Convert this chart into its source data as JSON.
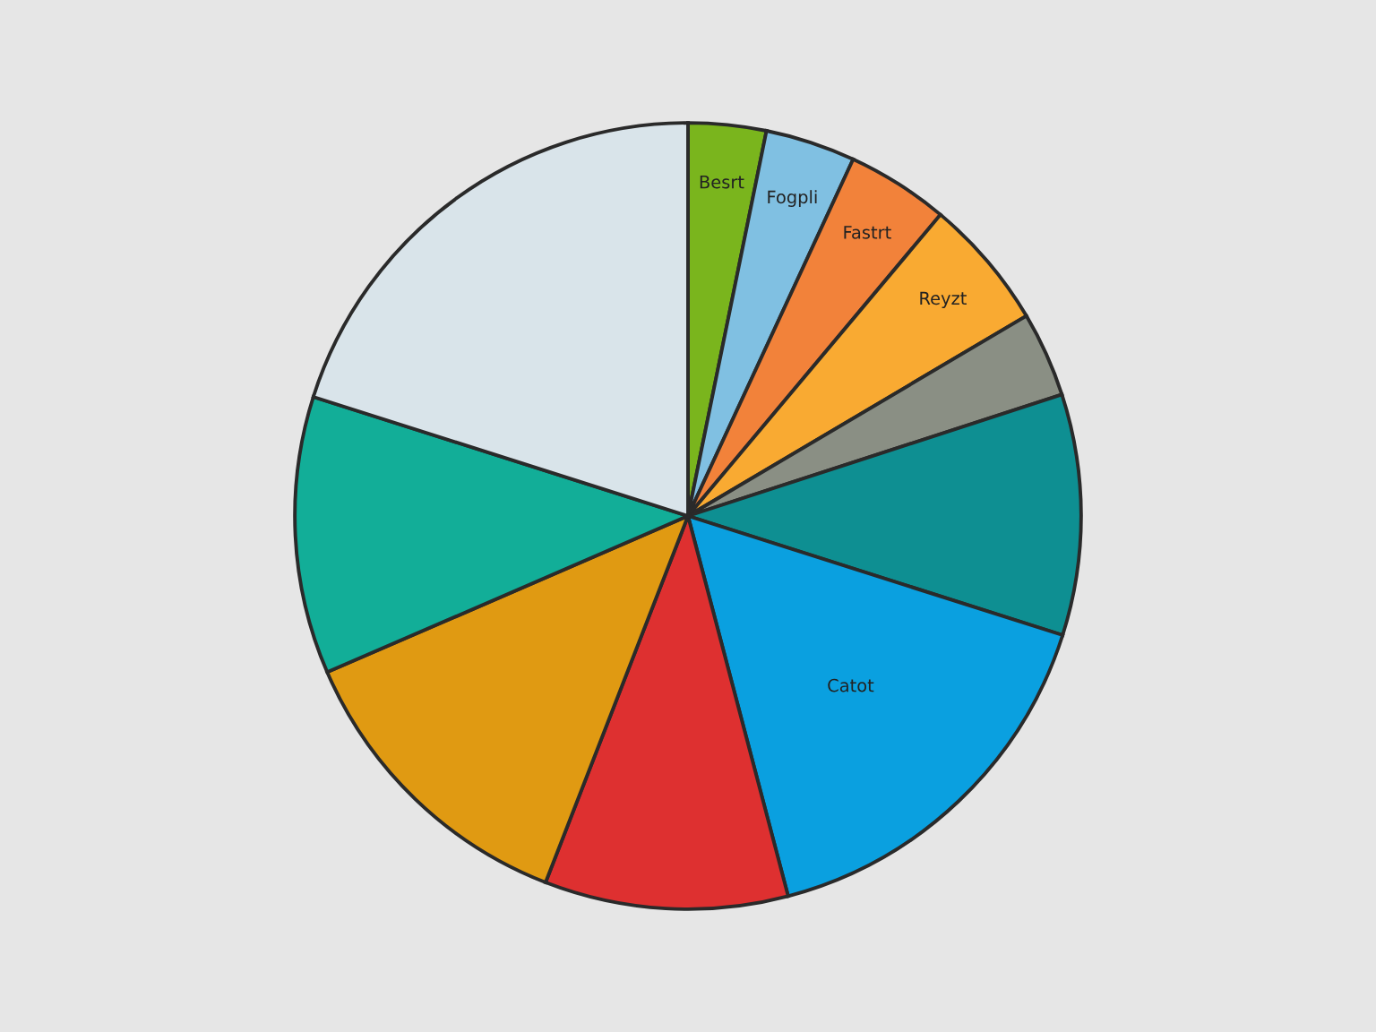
{
  "chart_data": {
    "type": "pie",
    "categories": [
      "Besrt",
      "Fogpli",
      "Fastrt",
      "Reyzt",
      null,
      null,
      "Catot",
      null,
      null,
      null,
      null
    ],
    "values": [
      3.2,
      3.7,
      4.2,
      5.4,
      3.5,
      9.9,
      16.0,
      10.0,
      12.6,
      11.4,
      20.1
    ],
    "colors": [
      "#7ab51d",
      "#80c0e2",
      "#f2823a",
      "#f9aa32",
      "#8a8f84",
      "#0e8f92",
      "#0aa0e0",
      "#de3030",
      "#e09a12",
      "#12ae98",
      "#d9e4ea"
    ]
  }
}
